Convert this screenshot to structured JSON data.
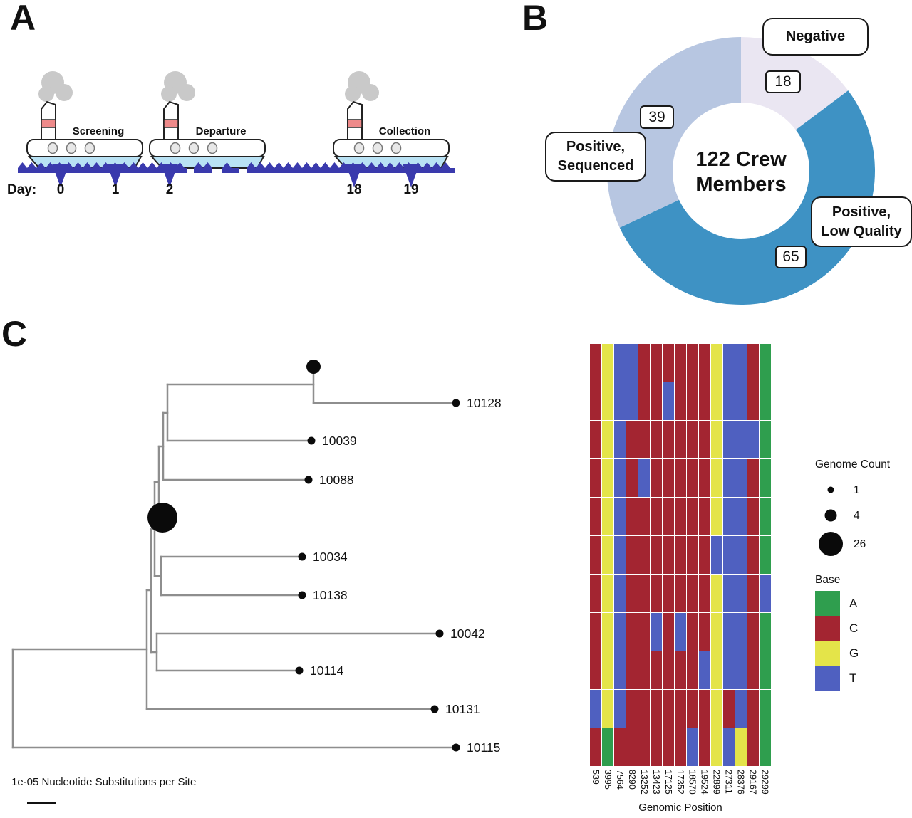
{
  "panel_a": {
    "label": "A",
    "day_prefix": "Day:",
    "ships": [
      {
        "name": "Screening"
      },
      {
        "name": "Departure"
      },
      {
        "name": "Collection"
      }
    ],
    "days": [
      "0",
      "1",
      "2",
      "18",
      "19"
    ]
  },
  "panel_b": {
    "label": "B",
    "center_line1": "122 Crew",
    "center_line2": "Members",
    "labels": {
      "negative": "Negative",
      "sequenced_line1": "Positive,",
      "sequenced_line2": "Sequenced",
      "lowq_line1": "Positive,",
      "lowq_line2": "Low Quality"
    },
    "counts": {
      "negative": "18",
      "sequenced": "39",
      "low_quality": "65"
    }
  },
  "panel_c": {
    "label": "C",
    "scale_text": "1e-05 Nucleotide Substitutions per Site",
    "axis_title": "Genomic Position",
    "legend": {
      "genome_count_title": "Genome Count",
      "sizes": [
        {
          "label": "1",
          "count": 1
        },
        {
          "label": "4",
          "count": 4
        },
        {
          "label": "26",
          "count": 26
        }
      ],
      "base_title": "Base",
      "bases": [
        "A",
        "C",
        "G",
        "T"
      ]
    }
  },
  "colors": {
    "wave": "#3a3aad",
    "ship_hull_blue": "#b9e2f4",
    "funnel_stripe": "#ee8a8a",
    "smoke": "#c9c9c9",
    "tree_branch": "#8e8e8e",
    "donut_negative": "#eae6f2",
    "donut_low_quality": "#3e92c4",
    "donut_sequenced": "#b7c6e1"
  },
  "chart_data": [
    {
      "type": "pie",
      "title": "122 Crew Members",
      "labels": [
        "Negative",
        "Positive, Low Quality",
        "Positive, Sequenced"
      ],
      "values": [
        18,
        65,
        39
      ],
      "colors": [
        "#eae6f2",
        "#3e92c4",
        "#b7c6e1"
      ],
      "donut": true,
      "inner_ratio": 0.51,
      "start": "top",
      "direction": "clockwise"
    },
    {
      "type": "tree",
      "scale_bar": "1e-05 Nucleotide Substitutions per Site",
      "tips": [
        {
          "label": "",
          "genome_count": 4
        },
        {
          "label": "10128",
          "genome_count": 1
        },
        {
          "label": "10039",
          "genome_count": 1
        },
        {
          "label": "10088",
          "genome_count": 1
        },
        {
          "label": "",
          "genome_count": 26
        },
        {
          "label": "10034",
          "genome_count": 1
        },
        {
          "label": "10138",
          "genome_count": 1
        },
        {
          "label": "10042",
          "genome_count": 1
        },
        {
          "label": "10114",
          "genome_count": 1
        },
        {
          "label": "10131",
          "genome_count": 1
        },
        {
          "label": "10115",
          "genome_count": 1
        }
      ]
    },
    {
      "type": "heatmap",
      "xlabel": "Genomic Position",
      "positions": [
        539,
        3995,
        7564,
        8290,
        13252,
        13423,
        17125,
        17352,
        18570,
        19524,
        22899,
        27311,
        28376,
        29167,
        29299
      ],
      "rows": [
        {
          "tip": "clade-4-genomes",
          "bases": [
            "C",
            "G",
            "T",
            "T",
            "C",
            "C",
            "C",
            "C",
            "C",
            "C",
            "G",
            "T",
            "T",
            "C",
            "A"
          ]
        },
        {
          "tip": "10128",
          "bases": [
            "C",
            "G",
            "T",
            "T",
            "C",
            "C",
            "T",
            "C",
            "C",
            "C",
            "G",
            "T",
            "T",
            "C",
            "A"
          ]
        },
        {
          "tip": "10039",
          "bases": [
            "C",
            "G",
            "T",
            "C",
            "C",
            "C",
            "C",
            "C",
            "C",
            "C",
            "G",
            "T",
            "T",
            "T",
            "A"
          ]
        },
        {
          "tip": "10088",
          "bases": [
            "C",
            "G",
            "T",
            "C",
            "T",
            "C",
            "C",
            "C",
            "C",
            "C",
            "G",
            "T",
            "T",
            "C",
            "A"
          ]
        },
        {
          "tip": "clade-26-genomes",
          "bases": [
            "C",
            "G",
            "T",
            "C",
            "C",
            "C",
            "C",
            "C",
            "C",
            "C",
            "G",
            "T",
            "T",
            "C",
            "A"
          ]
        },
        {
          "tip": "10034",
          "bases": [
            "C",
            "G",
            "T",
            "C",
            "C",
            "C",
            "C",
            "C",
            "C",
            "C",
            "T",
            "T",
            "T",
            "C",
            "A"
          ]
        },
        {
          "tip": "10138",
          "bases": [
            "C",
            "G",
            "T",
            "C",
            "C",
            "C",
            "C",
            "C",
            "C",
            "C",
            "G",
            "T",
            "T",
            "C",
            "T"
          ]
        },
        {
          "tip": "10042",
          "bases": [
            "C",
            "G",
            "T",
            "C",
            "C",
            "T",
            "C",
            "T",
            "C",
            "C",
            "G",
            "T",
            "T",
            "C",
            "A"
          ]
        },
        {
          "tip": "10114",
          "bases": [
            "C",
            "G",
            "T",
            "C",
            "C",
            "C",
            "C",
            "C",
            "C",
            "T",
            "G",
            "T",
            "T",
            "C",
            "A"
          ]
        },
        {
          "tip": "10131",
          "bases": [
            "T",
            "G",
            "T",
            "C",
            "C",
            "C",
            "C",
            "C",
            "C",
            "C",
            "G",
            "C",
            "T",
            "C",
            "A"
          ]
        },
        {
          "tip": "10115",
          "bases": [
            "C",
            "A",
            "C",
            "C",
            "C",
            "C",
            "C",
            "C",
            "T",
            "C",
            "G",
            "T",
            "G",
            "C",
            "A"
          ]
        }
      ],
      "base_colors": {
        "A": "#2f9e4e",
        "C": "#a32531",
        "G": "#e4e449",
        "T": "#4f60c0"
      }
    }
  ]
}
